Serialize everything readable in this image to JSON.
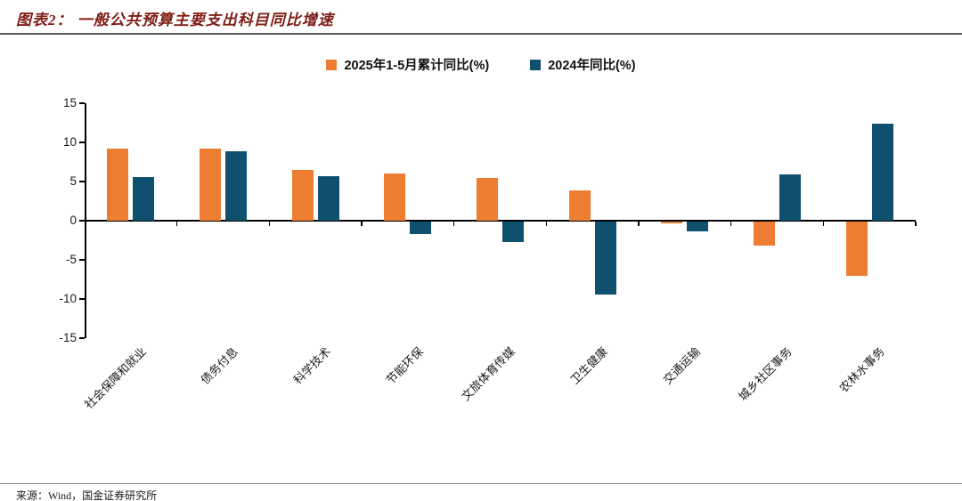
{
  "title": "图表2： 一般公共预算主要支出科目同比增速",
  "source": "来源：Wind，国金证券研究所",
  "colors": {
    "series_2025": "#ED7D31",
    "series_2024": "#0E506E",
    "title_text": "#7E1D15",
    "axis": "#000000"
  },
  "legend": [
    {
      "key": "2025",
      "label": "2025年1-5月累计同比(%)",
      "color": "#ED7D31"
    },
    {
      "key": "2024",
      "label": "2024年同比(%)",
      "color": "#0E506E"
    }
  ],
  "chart_data": {
    "type": "bar",
    "title": "一般公共预算主要支出科目同比增速",
    "categories": [
      "社会保障和就业",
      "债务付息",
      "科学技术",
      "节能环保",
      "文旅体育传媒",
      "卫生健康",
      "交通运输",
      "城乡社区事务",
      "农林水事务"
    ],
    "series": [
      {
        "key": "2025",
        "name": "2025年1-5月累计同比(%)",
        "color": "#ED7D31",
        "values": [
          9.2,
          9.2,
          6.5,
          6.0,
          5.4,
          3.9,
          -0.2,
          -3.1,
          -7.0
        ]
      },
      {
        "key": "2024",
        "name": "2024年同比(%)",
        "color": "#0E506E",
        "values": [
          5.6,
          8.9,
          5.7,
          -1.6,
          -2.6,
          -9.3,
          -1.3,
          5.9,
          12.4
        ]
      }
    ],
    "xlabel": "",
    "ylabel": "",
    "ylim": [
      -15,
      15
    ],
    "yticks": [
      15,
      10,
      5,
      0,
      -5,
      -10,
      -15
    ],
    "grid": false,
    "legend_position": "top"
  }
}
